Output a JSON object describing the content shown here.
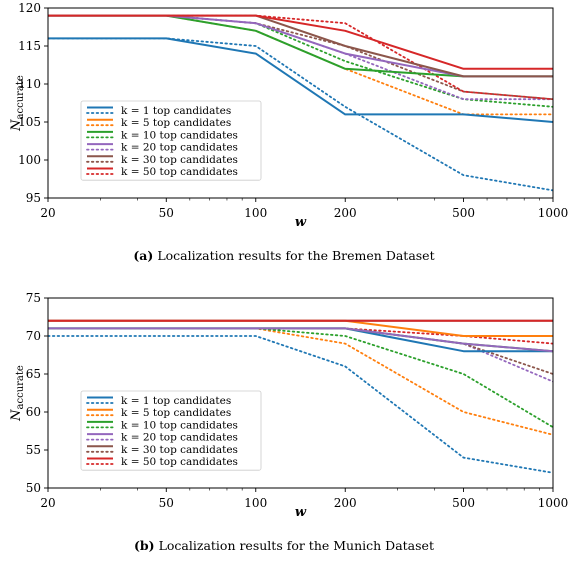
{
  "chart_data": [
    {
      "type": "line",
      "caption_label": "(a)",
      "caption_text": "Localization results for the Bremen Dataset",
      "xlabel": "w",
      "ylabel": "N",
      "ylabel_sub": "accurate",
      "x_scale": "log",
      "x": [
        20,
        50,
        100,
        200,
        500,
        1000
      ],
      "xticks": [
        "20",
        "50",
        "100",
        "200",
        "500",
        "1000"
      ],
      "ylim": [
        95,
        120
      ],
      "yticks": [
        "95",
        "100",
        "105",
        "110",
        "115",
        "120"
      ],
      "ytick_values": [
        95,
        100,
        105,
        110,
        115,
        120
      ],
      "grid": false,
      "legend_position": "lower-left",
      "series": [
        {
          "name": "k = 1 top candidates",
          "style": "solid",
          "color": "#1f77b4",
          "values": [
            116,
            116,
            114,
            106,
            106,
            105
          ]
        },
        {
          "name": "",
          "style": "dotted",
          "color": "#1f77b4",
          "values": [
            116,
            116,
            115,
            107,
            98,
            96
          ]
        },
        {
          "name": "k = 5 top candidates",
          "style": "dotted",
          "color": "#ff7f0e",
          "values": [
            119,
            119,
            117,
            112,
            106,
            106
          ]
        },
        {
          "name": "k = 10 top candidates",
          "style": "solid",
          "color": "#2ca02c",
          "values": [
            119,
            119,
            117,
            112,
            111,
            111
          ]
        },
        {
          "name": "",
          "style": "dotted",
          "color": "#2ca02c",
          "values": [
            119,
            119,
            118,
            113,
            108,
            107
          ]
        },
        {
          "name": "k = 20 top candidates",
          "style": "solid",
          "color": "#9467bd",
          "values": [
            119,
            119,
            118,
            114,
            111,
            111
          ]
        },
        {
          "name": "",
          "style": "dotted",
          "color": "#9467bd",
          "values": [
            119,
            119,
            118,
            114,
            108,
            108
          ]
        },
        {
          "name": "k = 30 top candidates",
          "style": "solid",
          "color": "#8c564b",
          "values": [
            119,
            119,
            119,
            115,
            111,
            111
          ]
        },
        {
          "name": "",
          "style": "dotted",
          "color": "#8c564b",
          "values": [
            119,
            119,
            118,
            115,
            109,
            108
          ]
        },
        {
          "name": "k = 50 top candidates",
          "style": "solid",
          "color": "#d62728",
          "values": [
            119,
            119,
            119,
            117,
            112,
            112
          ]
        },
        {
          "name": "",
          "style": "dotted",
          "color": "#d62728",
          "values": [
            119,
            119,
            119,
            118,
            109,
            108
          ]
        }
      ]
    },
    {
      "type": "line",
      "caption_label": "(b)",
      "caption_text": "Localization results for the Munich Dataset",
      "xlabel": "w",
      "ylabel": "N",
      "ylabel_sub": "accurate",
      "x_scale": "log",
      "x": [
        20,
        50,
        100,
        200,
        500,
        1000
      ],
      "xticks": [
        "20",
        "50",
        "100",
        "200",
        "500",
        "1000"
      ],
      "ylim": [
        50,
        75
      ],
      "yticks": [
        "50",
        "55",
        "60",
        "65",
        "70",
        "75"
      ],
      "ytick_values": [
        50,
        55,
        60,
        65,
        70,
        75
      ],
      "grid": false,
      "legend_position": "lower-left",
      "series": [
        {
          "name": "k = 1 top candidates",
          "style": "solid",
          "color": "#1f77b4",
          "values": [
            71,
            71,
            71,
            71,
            68,
            68
          ]
        },
        {
          "name": "",
          "style": "dotted",
          "color": "#1f77b4",
          "values": [
            70,
            70,
            70,
            66,
            54,
            52
          ]
        },
        {
          "name": "k = 5 top candidates",
          "style": "solid",
          "color": "#ff7f0e",
          "values": [
            72,
            72,
            72,
            72,
            70,
            70
          ]
        },
        {
          "name": "",
          "style": "dotted",
          "color": "#ff7f0e",
          "values": [
            71,
            71,
            71,
            69,
            60,
            57
          ]
        },
        {
          "name": "k = 10 top candidates",
          "style": "solid",
          "color": "#2ca02c",
          "values": [
            71,
            71,
            71,
            71,
            69,
            68
          ]
        },
        {
          "name": "",
          "style": "dotted",
          "color": "#2ca02c",
          "values": [
            71,
            71,
            71,
            70,
            65,
            58
          ]
        },
        {
          "name": "k = 20 top candidates",
          "style": "solid",
          "color": "#9467bd",
          "values": [
            71,
            71,
            71,
            71,
            69,
            68
          ]
        },
        {
          "name": "",
          "style": "dotted",
          "color": "#9467bd",
          "values": [
            71,
            71,
            71,
            71,
            69,
            64
          ]
        },
        {
          "name": "k = 30 top candidates",
          "style": "solid",
          "color": "#8c564b",
          "values": [
            72,
            72,
            72,
            72,
            72,
            72
          ]
        },
        {
          "name": "",
          "style": "dotted",
          "color": "#8c564b",
          "values": [
            71,
            71,
            71,
            71,
            69,
            65
          ]
        },
        {
          "name": "k = 50 top candidates",
          "style": "solid",
          "color": "#d62728",
          "values": [
            72,
            72,
            72,
            72,
            72,
            72
          ]
        },
        {
          "name": "",
          "style": "dotted",
          "color": "#d62728",
          "values": [
            71,
            71,
            71,
            71,
            70,
            69
          ]
        }
      ]
    }
  ],
  "legends": [
    {
      "entries": [
        {
          "label": "k = 1 top candidates",
          "color": "#1f77b4"
        },
        {
          "label": "k = 5 top candidates",
          "color": "#ff7f0e"
        },
        {
          "label": "k = 10 top candidates",
          "color": "#2ca02c"
        },
        {
          "label": "k = 20 top candidates",
          "color": "#9467bd"
        },
        {
          "label": "k = 30 top candidates",
          "color": "#8c564b"
        },
        {
          "label": "k = 50 top candidates",
          "color": "#d62728"
        }
      ]
    },
    {
      "entries": [
        {
          "label": "k = 1 top candidates",
          "color": "#1f77b4"
        },
        {
          "label": "k = 5 top candidates",
          "color": "#ff7f0e"
        },
        {
          "label": "k = 10 top candidates",
          "color": "#2ca02c"
        },
        {
          "label": "k = 20 top candidates",
          "color": "#9467bd"
        },
        {
          "label": "k = 30 top candidates",
          "color": "#8c564b"
        },
        {
          "label": "k = 50 top candidates",
          "color": "#d62728"
        }
      ]
    }
  ]
}
